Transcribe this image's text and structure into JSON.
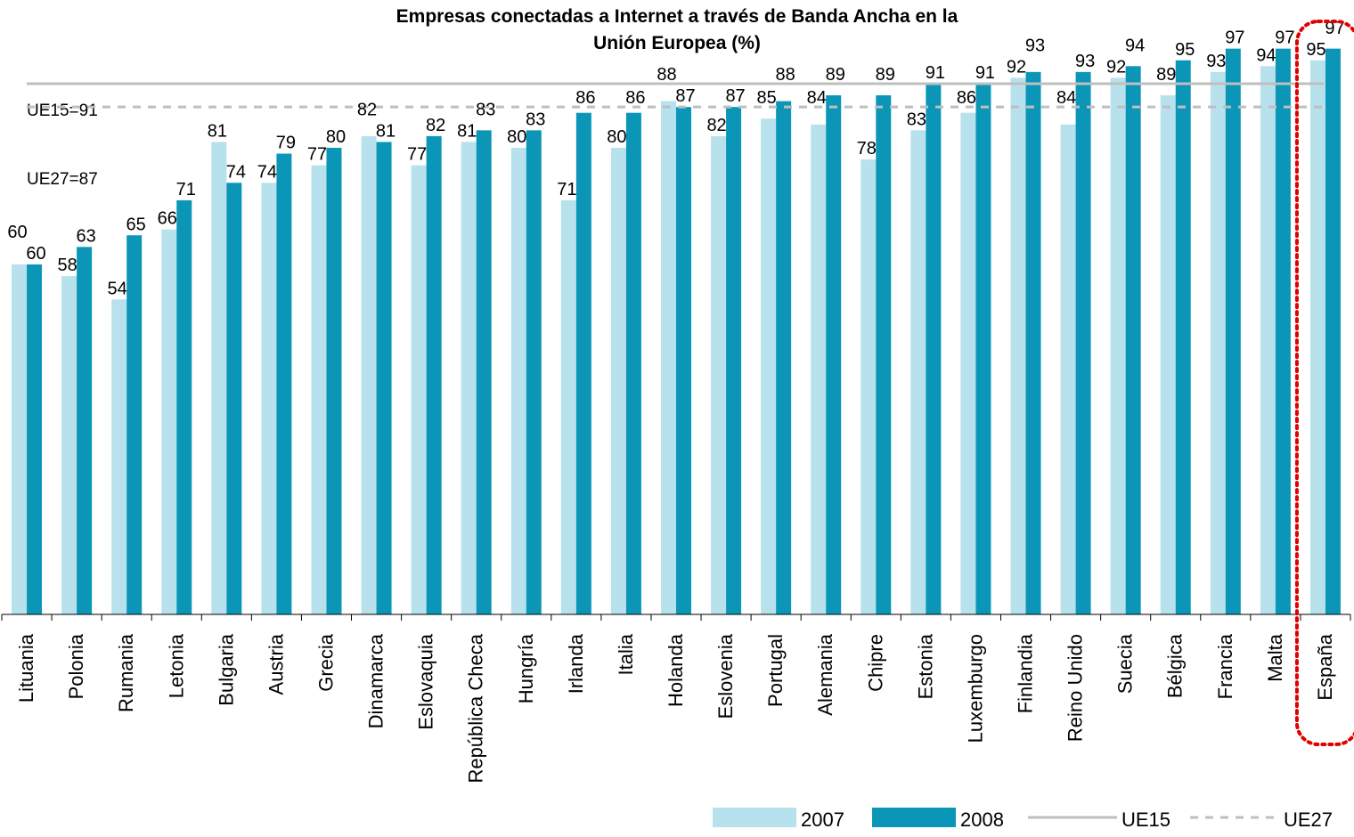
{
  "chart_data": {
    "type": "bar",
    "title_lines": [
      "Empresas conectadas a Internet  a través de Banda Ancha en la",
      "Unión Europea (%)"
    ],
    "categories": [
      "Lituania",
      "Polonia",
      "Rumania",
      "Letonia",
      "Bulgaria",
      "Austria",
      "Grecia",
      "Dinamarca",
      "Eslovaquia",
      "República Checa",
      "Hungría",
      "Irlanda",
      "Italia",
      "Holanda",
      "Eslovenia",
      "Portugal",
      "Alemania",
      "Chipre",
      "Estonia",
      "Luxemburgo",
      "Finlandia",
      "Reino Unido",
      "Suecia",
      "Bélgica",
      "Francia",
      "Malta",
      "España"
    ],
    "series": [
      {
        "name": "2007",
        "color": "#b7e1ec",
        "values": [
          60,
          58,
          54,
          66,
          81,
          74,
          77,
          82,
          77,
          81,
          80,
          71,
          80,
          88,
          82,
          85,
          84,
          78,
          83,
          86,
          92,
          84,
          92,
          89,
          93,
          94,
          95
        ]
      },
      {
        "name": "2008",
        "color": "#0b96b8",
        "values": [
          60,
          63,
          65,
          71,
          74,
          79,
          80,
          81,
          82,
          83,
          83,
          86,
          86,
          87,
          87,
          88,
          89,
          89,
          91,
          91,
          93,
          93,
          94,
          95,
          97,
          97,
          97
        ]
      }
    ],
    "reference_lines": [
      {
        "name": "UE15",
        "label": "UE15=91",
        "value": 91,
        "color": "#bfbfbf",
        "style": "solid"
      },
      {
        "name": "UE27",
        "label": "UE27=87",
        "value": 87,
        "color": "#bfbfbf",
        "style": "dashed"
      }
    ],
    "highlight": {
      "category": "España",
      "color": "#e00000",
      "style": "dotted"
    },
    "ylim": [
      0,
      100
    ],
    "grid": false,
    "legend_position": "bottom-right"
  }
}
